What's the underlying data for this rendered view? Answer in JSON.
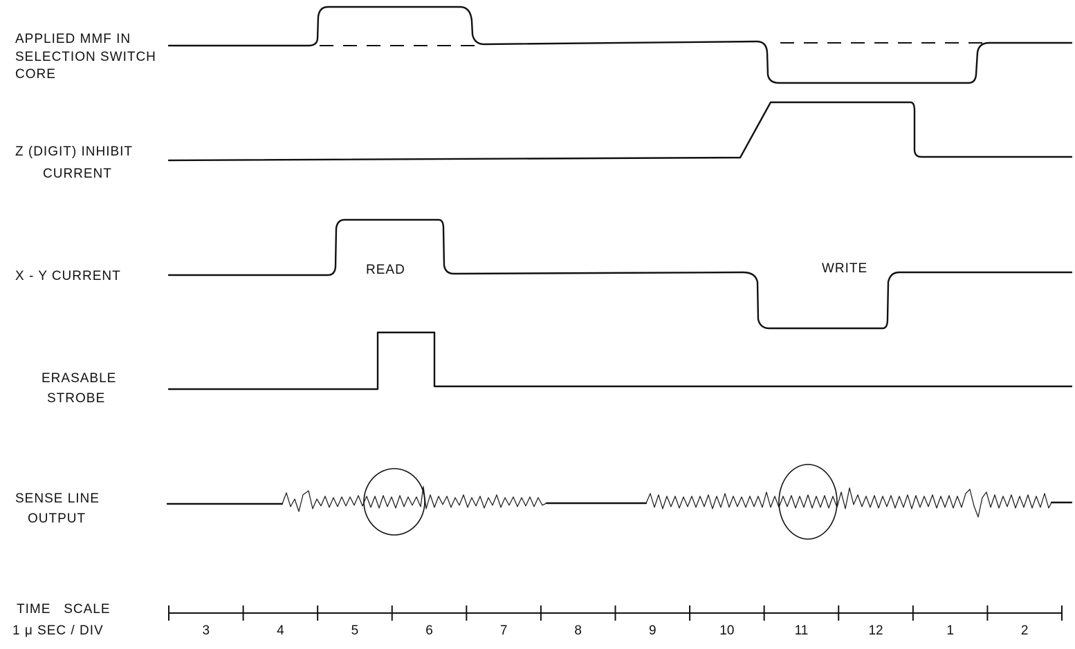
{
  "signals": {
    "applied_mmf": {
      "lines": [
        "APPLIED MMF IN",
        "SELECTION SWITCH",
        "CORE"
      ]
    },
    "z_inhibit": {
      "lines": [
        "Z (DIGIT) INHIBIT",
        "CURRENT"
      ]
    },
    "xy_current": {
      "lines": [
        "X - Y CURRENT"
      ],
      "read_label": "READ",
      "write_label": "WRITE"
    },
    "erasable_strobe": {
      "lines": [
        "ERASABLE",
        "STROBE"
      ]
    },
    "sense_line": {
      "lines": [
        "SENSE LINE",
        "OUTPUT"
      ]
    }
  },
  "time_scale": {
    "lines": [
      "TIME   SCALE",
      "1 μ SEC / DIV"
    ],
    "divisions": [
      "3",
      "4",
      "5",
      "6",
      "7",
      "8",
      "9",
      "10",
      "11",
      "12",
      "1",
      "2"
    ]
  }
}
